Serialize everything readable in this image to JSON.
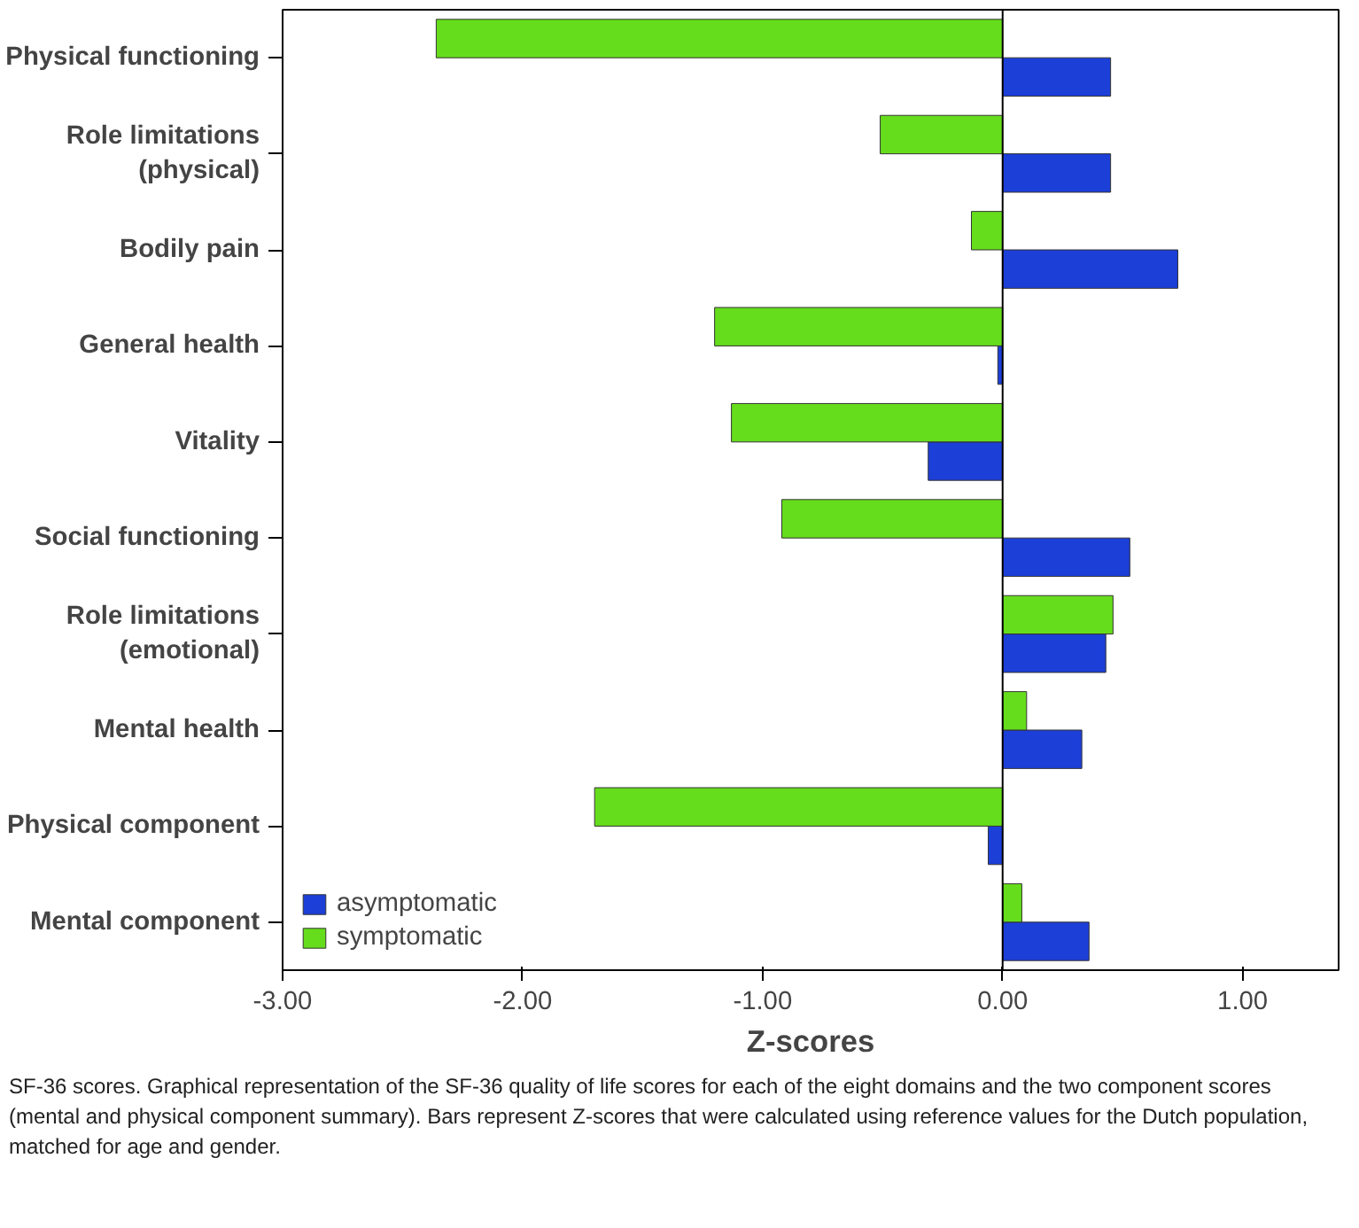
{
  "chart_data": {
    "type": "bar",
    "orientation": "horizontal",
    "xlabel": "Z-scores",
    "categories": [
      "Physical functioning",
      "Role limitations\n(physical)",
      "Bodily pain",
      "General health",
      "Vitality",
      "Social functioning",
      "Role limitations\n(emotional)",
      "Mental health",
      "Physical component",
      "Mental component"
    ],
    "series": [
      {
        "name": "asymptomatic",
        "color": "#1c3fd8",
        "values": [
          0.45,
          0.45,
          0.73,
          -0.02,
          -0.31,
          0.53,
          0.43,
          0.33,
          -0.06,
          0.36
        ]
      },
      {
        "name": "symptomatic",
        "color": "#66dd1c",
        "values": [
          -2.36,
          -0.51,
          -0.13,
          -1.2,
          -1.13,
          -0.92,
          0.46,
          0.1,
          -1.7,
          0.08
        ]
      }
    ],
    "xlim": [
      -3,
      1.4
    ],
    "xticks": [
      {
        "value": -3,
        "label": "-3.00"
      },
      {
        "value": -2,
        "label": "-2.00"
      },
      {
        "value": -1,
        "label": "-1.00"
      },
      {
        "value": 0,
        "label": "0.00"
      },
      {
        "value": 1,
        "label": "1.00"
      }
    ],
    "ref_lines": [
      {
        "axis": "x",
        "value": 0,
        "color": "#000000"
      }
    ],
    "grid": false,
    "legend": "bottom left",
    "annotations": [
      "SF-36 scores. Graphical representation of the SF-36 quality of life scores for each of the eight domains and the two component scores (mental and physical component summary). Bars represent Z-scores that were calculated using reference values for the Dutch population, matched for age and gender."
    ]
  }
}
